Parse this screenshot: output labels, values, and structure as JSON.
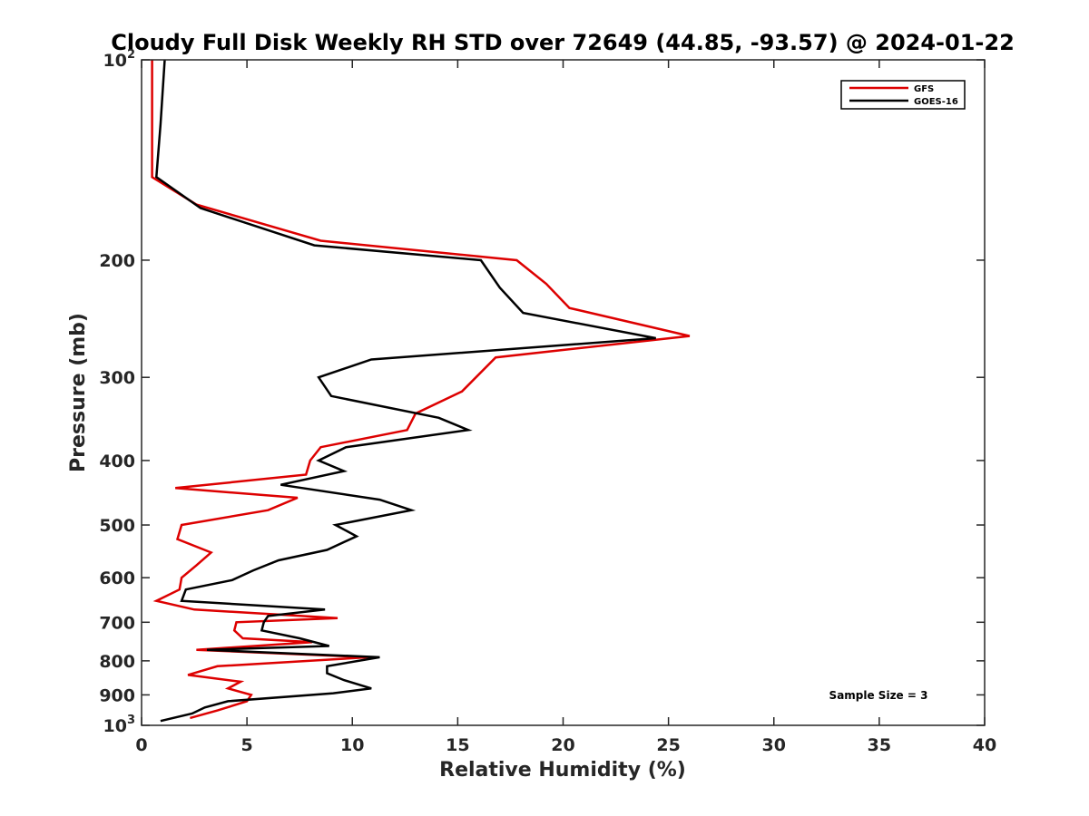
{
  "chart_data": {
    "type": "line",
    "title": "Cloudy Full Disk Weekly RH STD over 72649 (44.85, -93.57) @ 2024-01-22",
    "xlabel": "Relative Humidity (%)",
    "ylabel": "Pressure (mb)",
    "xlim": [
      0,
      40
    ],
    "ylim": [
      100,
      1000
    ],
    "y_scale": "log",
    "y_reversed": true,
    "x_ticks": [
      "0",
      "5",
      "10",
      "15",
      "20",
      "25",
      "30",
      "35",
      "40"
    ],
    "y_ticks": [
      {
        "value": 100,
        "base": "10",
        "exp": "2"
      },
      {
        "value": 200,
        "label": "200"
      },
      {
        "value": 300,
        "label": "300"
      },
      {
        "value": 400,
        "label": "400"
      },
      {
        "value": 500,
        "label": "500"
      },
      {
        "value": 600,
        "label": "600"
      },
      {
        "value": 700,
        "label": "700"
      },
      {
        "value": 800,
        "label": "800"
      },
      {
        "value": 900,
        "label": "900"
      },
      {
        "value": 1000,
        "base": "10",
        "exp": "3"
      }
    ],
    "grid": false,
    "legend_position": "top-right",
    "series": [
      {
        "name": "GFS",
        "color": "#dd0000",
        "points": [
          [
            0.5,
            100
          ],
          [
            0.5,
            125
          ],
          [
            0.5,
            150
          ],
          [
            2.6,
            165
          ],
          [
            8.5,
            187
          ],
          [
            17.8,
            200
          ],
          [
            19.2,
            217
          ],
          [
            20.3,
            236
          ],
          [
            26.0,
            260
          ],
          [
            16.8,
            280
          ],
          [
            15.2,
            315
          ],
          [
            13.0,
            340
          ],
          [
            12.6,
            360
          ],
          [
            8.5,
            382
          ],
          [
            8.0,
            400
          ],
          [
            7.8,
            420
          ],
          [
            1.6,
            440
          ],
          [
            7.4,
            455
          ],
          [
            6.0,
            475
          ],
          [
            1.9,
            500
          ],
          [
            1.7,
            525
          ],
          [
            3.3,
            550
          ],
          [
            2.6,
            575
          ],
          [
            1.9,
            600
          ],
          [
            1.8,
            625
          ],
          [
            0.7,
            650
          ],
          [
            2.5,
            670
          ],
          [
            9.3,
            690
          ],
          [
            4.5,
            700
          ],
          [
            4.4,
            720
          ],
          [
            4.8,
            740
          ],
          [
            8.1,
            750
          ],
          [
            2.6,
            770
          ],
          [
            10.8,
            790
          ],
          [
            3.6,
            815
          ],
          [
            2.2,
            840
          ],
          [
            4.7,
            860
          ],
          [
            4.1,
            880
          ],
          [
            5.2,
            900
          ],
          [
            5.0,
            920
          ],
          [
            3.6,
            950
          ],
          [
            2.3,
            975
          ]
        ]
      },
      {
        "name": "GOES-16",
        "color": "#000000",
        "points": [
          [
            1.1,
            100
          ],
          [
            0.9,
            125
          ],
          [
            0.7,
            150
          ],
          [
            2.8,
            167
          ],
          [
            8.2,
            190
          ],
          [
            16.1,
            200
          ],
          [
            17.0,
            220
          ],
          [
            18.1,
            240
          ],
          [
            24.4,
            262
          ],
          [
            10.9,
            282
          ],
          [
            8.4,
            300
          ],
          [
            9.0,
            320
          ],
          [
            14.1,
            345
          ],
          [
            15.5,
            360
          ],
          [
            9.7,
            382
          ],
          [
            8.4,
            400
          ],
          [
            9.6,
            415
          ],
          [
            6.6,
            435
          ],
          [
            11.3,
            458
          ],
          [
            12.8,
            475
          ],
          [
            9.2,
            500
          ],
          [
            10.2,
            520
          ],
          [
            8.8,
            545
          ],
          [
            6.5,
            565
          ],
          [
            5.3,
            585
          ],
          [
            4.3,
            605
          ],
          [
            2.1,
            625
          ],
          [
            1.9,
            650
          ],
          [
            8.7,
            670
          ],
          [
            6.0,
            685
          ],
          [
            5.8,
            700
          ],
          [
            5.7,
            720
          ],
          [
            7.5,
            740
          ],
          [
            8.9,
            760
          ],
          [
            3.1,
            770
          ],
          [
            11.3,
            790
          ],
          [
            8.8,
            815
          ],
          [
            8.8,
            835
          ],
          [
            9.6,
            855
          ],
          [
            10.9,
            880
          ],
          [
            9.1,
            895
          ],
          [
            4.1,
            920
          ],
          [
            3.0,
            940
          ],
          [
            2.4,
            960
          ],
          [
            0.9,
            985
          ]
        ]
      }
    ],
    "annotations": [
      "Sample Size = 3"
    ]
  }
}
